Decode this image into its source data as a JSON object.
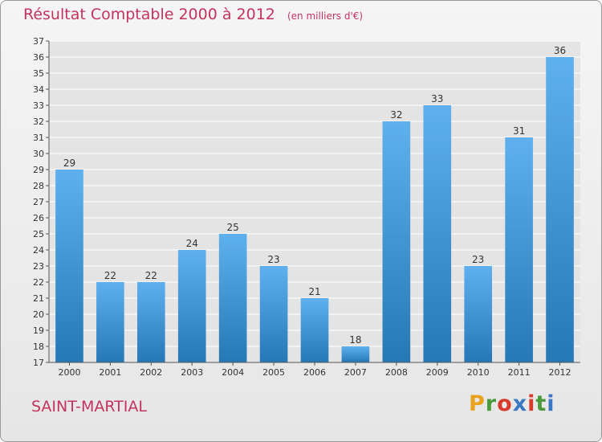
{
  "header": {
    "title": "Résultat Comptable 2000 à 2012",
    "subtitle": "(en milliers d'€)"
  },
  "footer": {
    "town": "SAINT-MARTIAL",
    "brand": {
      "letters": [
        "P",
        "r",
        "o",
        "x",
        "i",
        "t",
        "i"
      ],
      "colors": [
        "#e8a21c",
        "#4a9a3c",
        "#d83a2c",
        "#3a78c4",
        "#d83a2c",
        "#4a9a3c",
        "#3a78c4"
      ]
    }
  },
  "colors": {
    "bar_light": "#5fb0ee",
    "bar_dark": "#2578b5",
    "title": "#c4325e",
    "grid": "#ffffff"
  },
  "chart_data": {
    "type": "bar",
    "categories": [
      "2000",
      "2001",
      "2002",
      "2003",
      "2004",
      "2005",
      "2006",
      "2007",
      "2008",
      "2009",
      "2010",
      "2011",
      "2012"
    ],
    "values": [
      29,
      22,
      22,
      24,
      25,
      23,
      21,
      18,
      32,
      33,
      23,
      31,
      36
    ],
    "data_labels": [
      "29",
      "22",
      "22",
      "24",
      "25",
      "23",
      "21",
      "18",
      "32",
      "33",
      "23",
      "31",
      "36"
    ],
    "yticks": [
      17,
      18,
      19,
      20,
      21,
      22,
      23,
      24,
      25,
      26,
      27,
      28,
      29,
      30,
      31,
      32,
      33,
      34,
      35,
      36,
      37
    ],
    "ylim": [
      17,
      37
    ],
    "grid": true,
    "title": "Résultat Comptable 2000 à 2012",
    "xlabel": "",
    "ylabel": ""
  }
}
